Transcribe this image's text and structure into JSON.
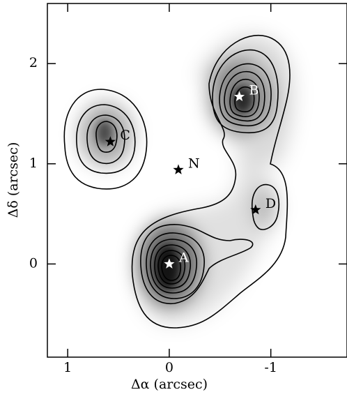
{
  "chart_data": {
    "type": "scatter",
    "xlabel": "Δα (arcsec)",
    "ylabel": "Δδ (arcsec)",
    "xlim": [
      1.2,
      -1.75
    ],
    "ylim": [
      -0.93,
      2.6
    ],
    "xticks": [
      1,
      0,
      -1
    ],
    "yticks": [
      0,
      1,
      2
    ],
    "labels": [
      "A",
      "B",
      "C",
      "D",
      "N"
    ],
    "x": [
      0,
      -0.69,
      0.58,
      -0.85,
      -0.09
    ],
    "y": [
      0,
      1.67,
      1.22,
      0.54,
      0.94
    ],
    "colors": [
      "#ffffff",
      "#ffffff",
      "#000000",
      "#000000",
      "#000000"
    ]
  }
}
